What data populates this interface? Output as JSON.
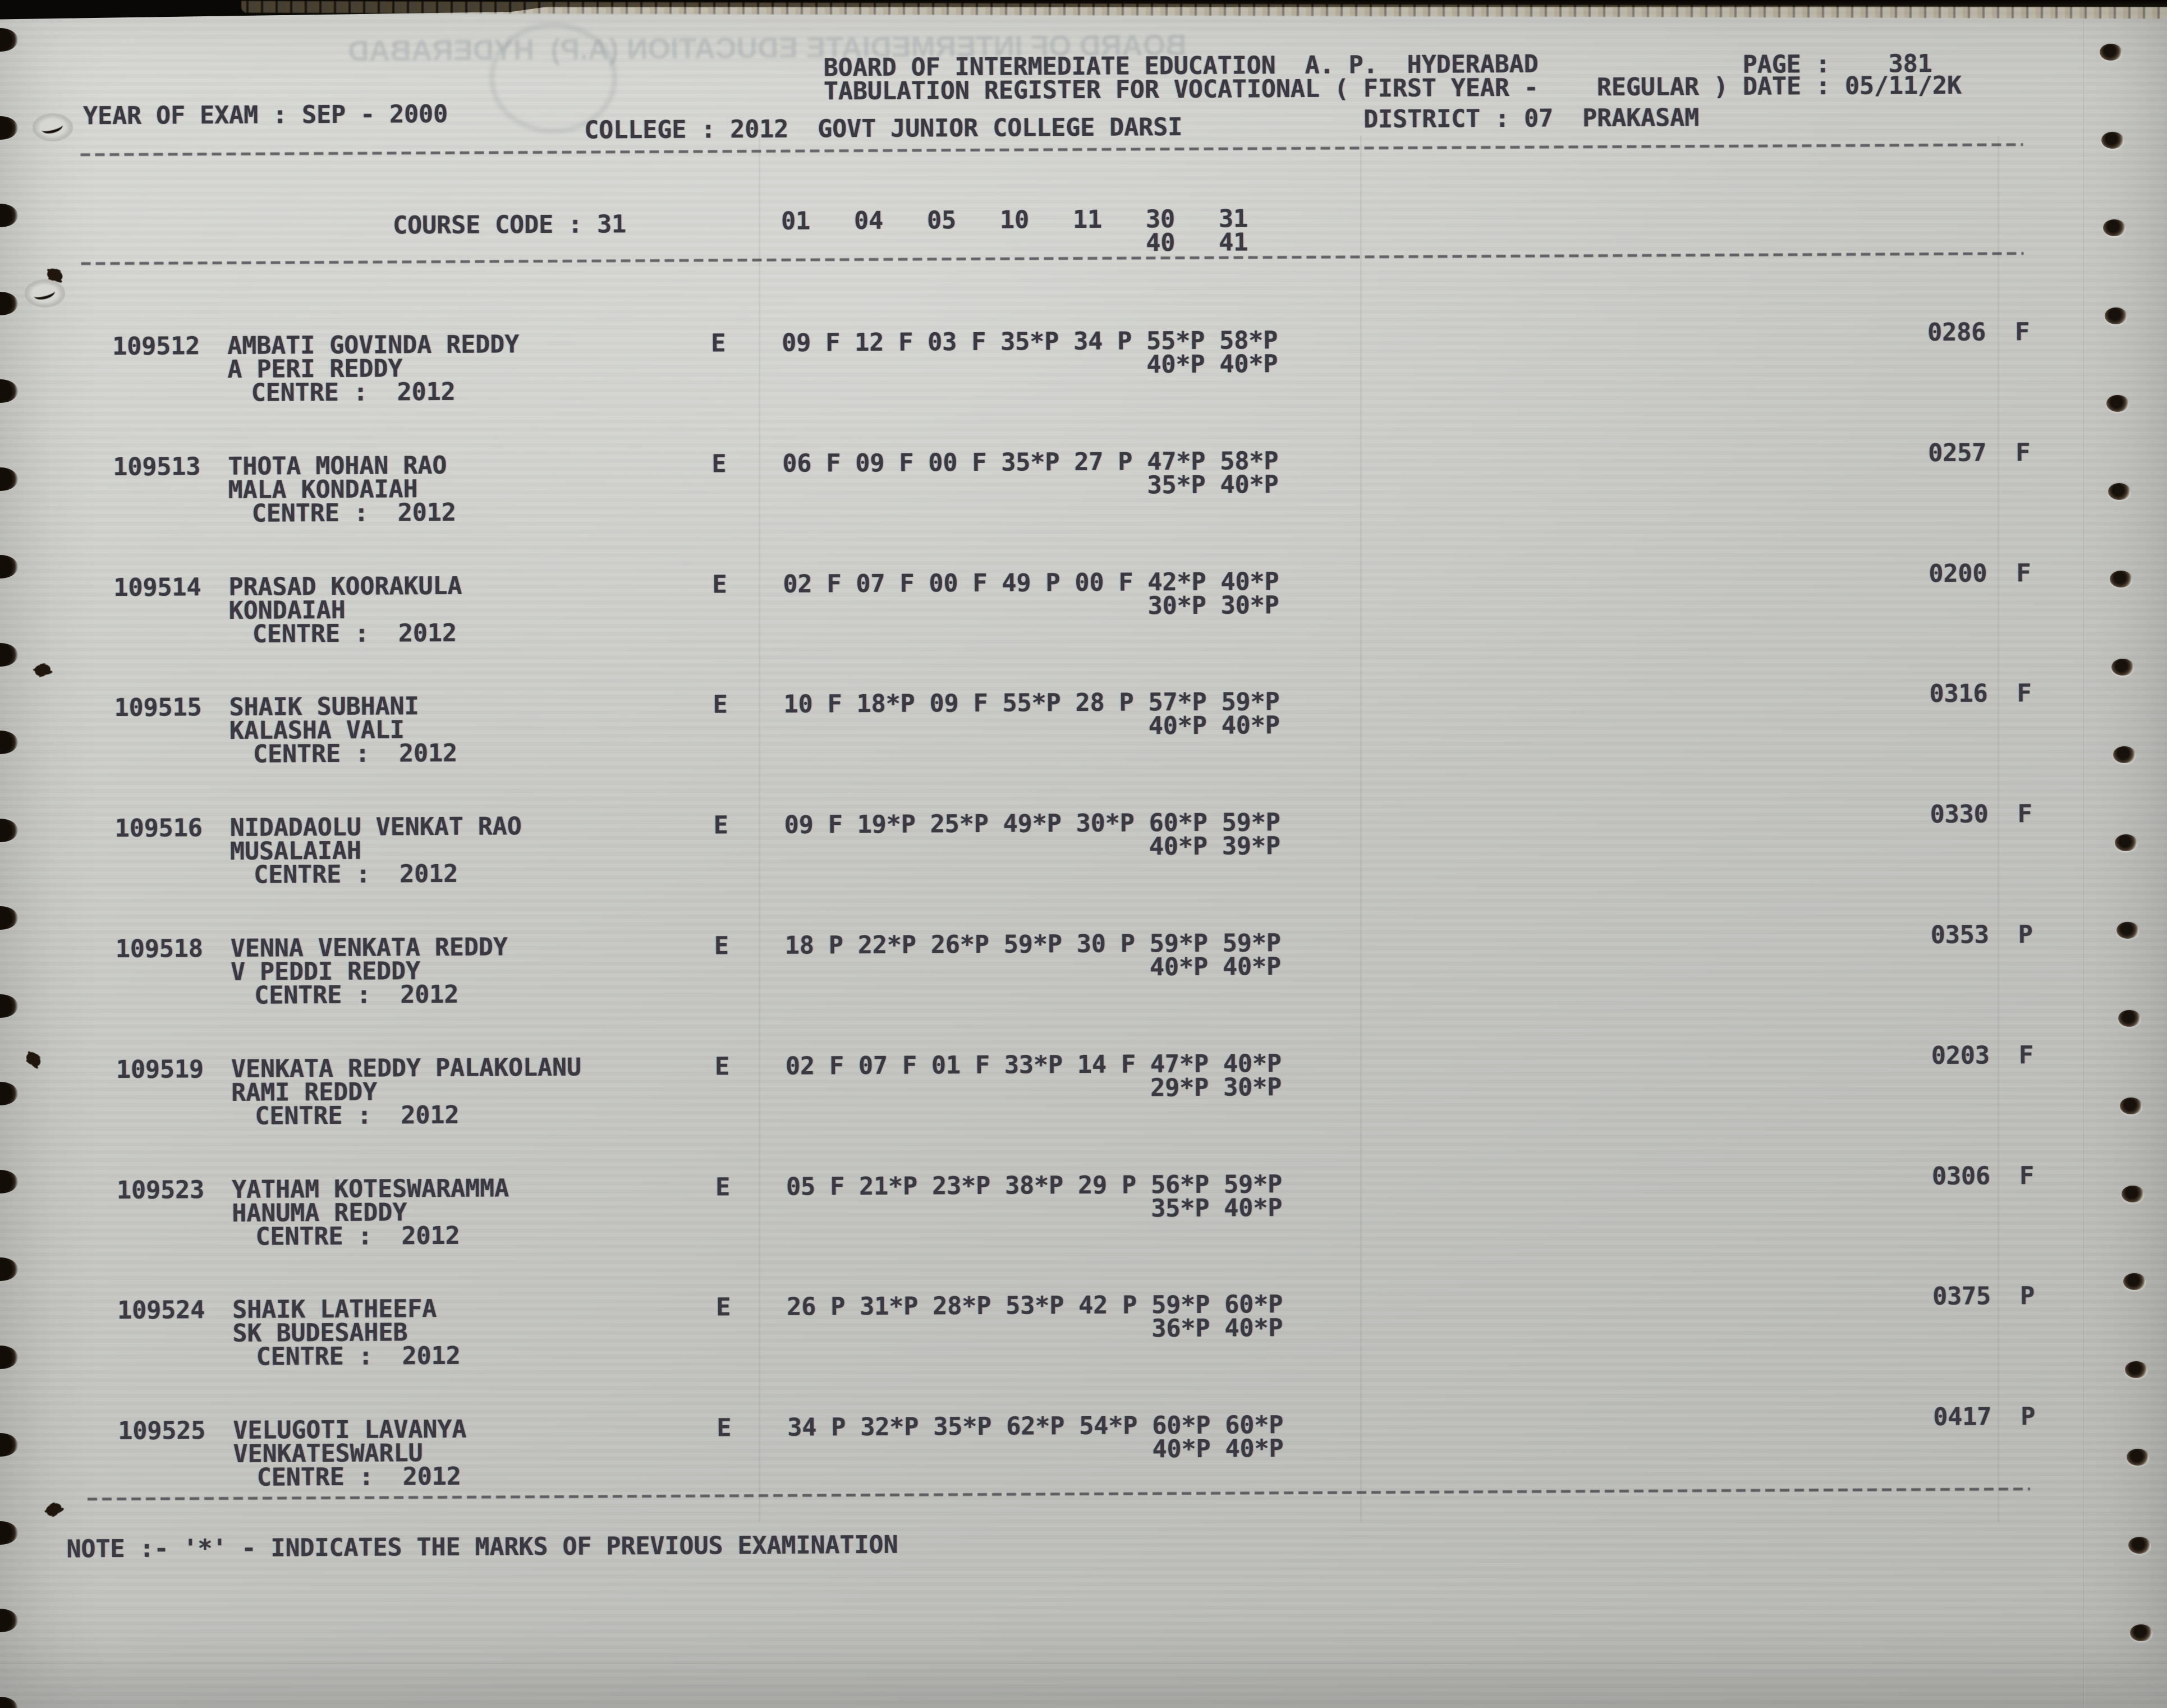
{
  "document": {
    "board_header": "BOARD OF INTERMEDIATE EDUCATION  A. P.  HYDERABAD",
    "register_header": "TABULATION REGISTER FOR VOCATIONAL ( FIRST YEAR -    REGULAR ) DATE : 05/11/2K",
    "page_header": "PAGE :    381",
    "year_of_exam": "YEAR OF EXAM : SEP - 2000",
    "college": "COLLEGE : 2012  GOVT JUNIOR COLLEGE DARSI",
    "district": "DISTRICT : 07  PRAKASAM",
    "course_code": "COURSE CODE : 31",
    "subject_codes_row1": "01   04   05   10   11   30   31",
    "subject_codes_row2": "40   41",
    "note": "NOTE :- '*' - INDICATES THE MARKS OF PREVIOUS EXAMINATION"
  },
  "students": [
    {
      "regno": "109512",
      "name": "AMBATI GOVINDA REDDY",
      "parent": "A PERI REDDY",
      "centre": "CENTRE :  2012",
      "medium": "E",
      "marks_row1": "09 F 12 F 03 F 35*P 34 P 55*P 58*P",
      "marks_row2": "40*P 40*P",
      "total": "0286  F"
    },
    {
      "regno": "109513",
      "name": "THOTA MOHAN RAO",
      "parent": "MALA KONDAIAH",
      "centre": "CENTRE :  2012",
      "medium": "E",
      "marks_row1": "06 F 09 F 00 F 35*P 27 P 47*P 58*P",
      "marks_row2": "35*P 40*P",
      "total": "0257  F"
    },
    {
      "regno": "109514",
      "name": "PRASAD KOORAKULA",
      "parent": "KONDAIAH",
      "centre": "CENTRE :  2012",
      "medium": "E",
      "marks_row1": "02 F 07 F 00 F 49 P 00 F 42*P 40*P",
      "marks_row2": "30*P 30*P",
      "total": "0200  F"
    },
    {
      "regno": "109515",
      "name": "SHAIK SUBHANI",
      "parent": "KALASHA VALI",
      "centre": "CENTRE :  2012",
      "medium": "E",
      "marks_row1": "10 F 18*P 09 F 55*P 28 P 57*P 59*P",
      "marks_row2": "40*P 40*P",
      "total": "0316  F"
    },
    {
      "regno": "109516",
      "name": "NIDADAOLU VENKAT RAO",
      "parent": "MUSALAIAH",
      "centre": "CENTRE :  2012",
      "medium": "E",
      "marks_row1": "09 F 19*P 25*P 49*P 30*P 60*P 59*P",
      "marks_row2": "40*P 39*P",
      "total": "0330  F"
    },
    {
      "regno": "109518",
      "name": "VENNA VENKATA REDDY",
      "parent": "V PEDDI REDDY",
      "centre": "CENTRE :  2012",
      "medium": "E",
      "marks_row1": "18 P 22*P 26*P 59*P 30 P 59*P 59*P",
      "marks_row2": "40*P 40*P",
      "total": "0353  P"
    },
    {
      "regno": "109519",
      "name": "VENKATA REDDY PALAKOLANU",
      "parent": "RAMI REDDY",
      "centre": "CENTRE :  2012",
      "medium": "E",
      "marks_row1": "02 F 07 F 01 F 33*P 14 F 47*P 40*P",
      "marks_row2": "29*P 30*P",
      "total": "0203  F"
    },
    {
      "regno": "109523",
      "name": "YATHAM KOTESWARAMMA",
      "parent": "HANUMA REDDY",
      "centre": "CENTRE :  2012",
      "medium": "E",
      "marks_row1": "05 F 21*P 23*P 38*P 29 P 56*P 59*P",
      "marks_row2": "35*P 40*P",
      "total": "0306  F"
    },
    {
      "regno": "109524",
      "name": "SHAIK LATHEEFA",
      "parent": "SK BUDESAHEB",
      "centre": "CENTRE :  2012",
      "medium": "E",
      "marks_row1": "26 P 31*P 28*P 53*P 42 P 59*P 60*P",
      "marks_row2": "36*P 40*P",
      "total": "0375  P"
    },
    {
      "regno": "109525",
      "name": "VELUGOTI LAVANYA",
      "parent": "VENKATESWARLU",
      "centre": "CENTRE :  2012",
      "medium": "E",
      "marks_row1": "34 P 32*P 35*P 62*P 54*P 60*P 60*P",
      "marks_row2": "40*P 40*P",
      "total": "0417  P"
    }
  ],
  "artifacts": {
    "bleedthrough_text": "BOARD OF INTERMEDIATE EDUCATION (A.P)  HYDERABAD"
  },
  "colors": {
    "ink": "#3a3942",
    "paper_light": "#d8d9d5",
    "paper_dark": "#b7b8b4"
  }
}
